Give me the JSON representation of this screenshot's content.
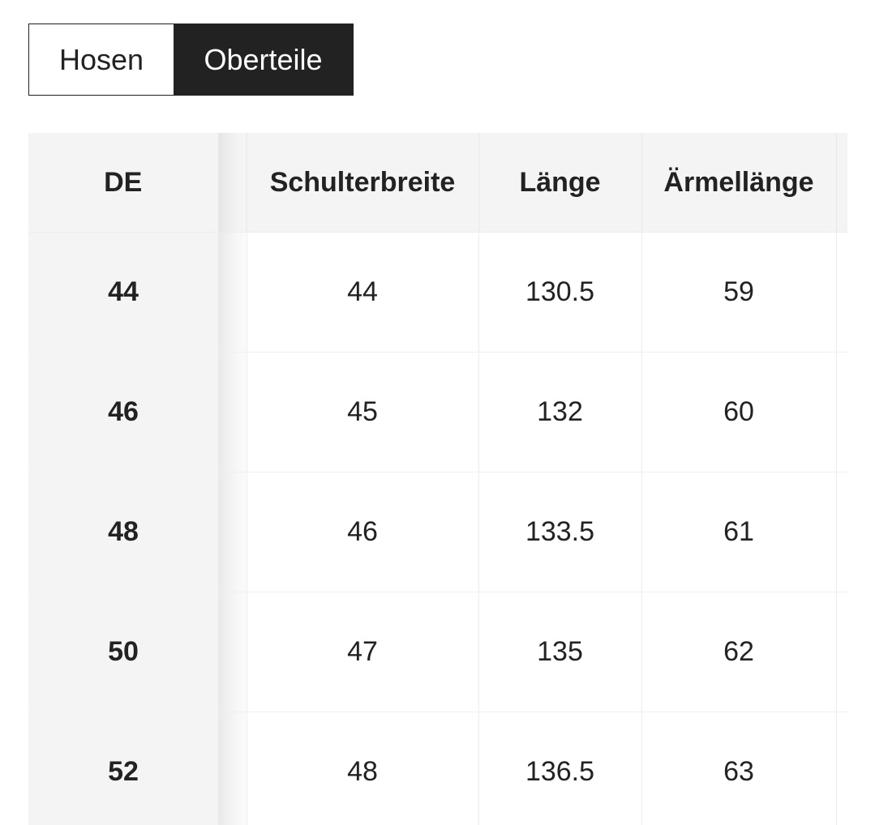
{
  "tabs": [
    {
      "label": "Hosen",
      "active": false
    },
    {
      "label": "Oberteile",
      "active": true
    }
  ],
  "table": {
    "headers": [
      "DE",
      "Schulterbreite",
      "Länge",
      "Ärmellänge"
    ],
    "rows": [
      [
        "44",
        "44",
        "130.5",
        "59"
      ],
      [
        "46",
        "45",
        "132",
        "60"
      ],
      [
        "48",
        "46",
        "133.5",
        "61"
      ],
      [
        "50",
        "47",
        "135",
        "62"
      ],
      [
        "52",
        "48",
        "136.5",
        "63"
      ]
    ]
  },
  "colors": {
    "active_tab_bg": "#222222",
    "header_bg": "#f4f4f4",
    "text": "#222222"
  }
}
